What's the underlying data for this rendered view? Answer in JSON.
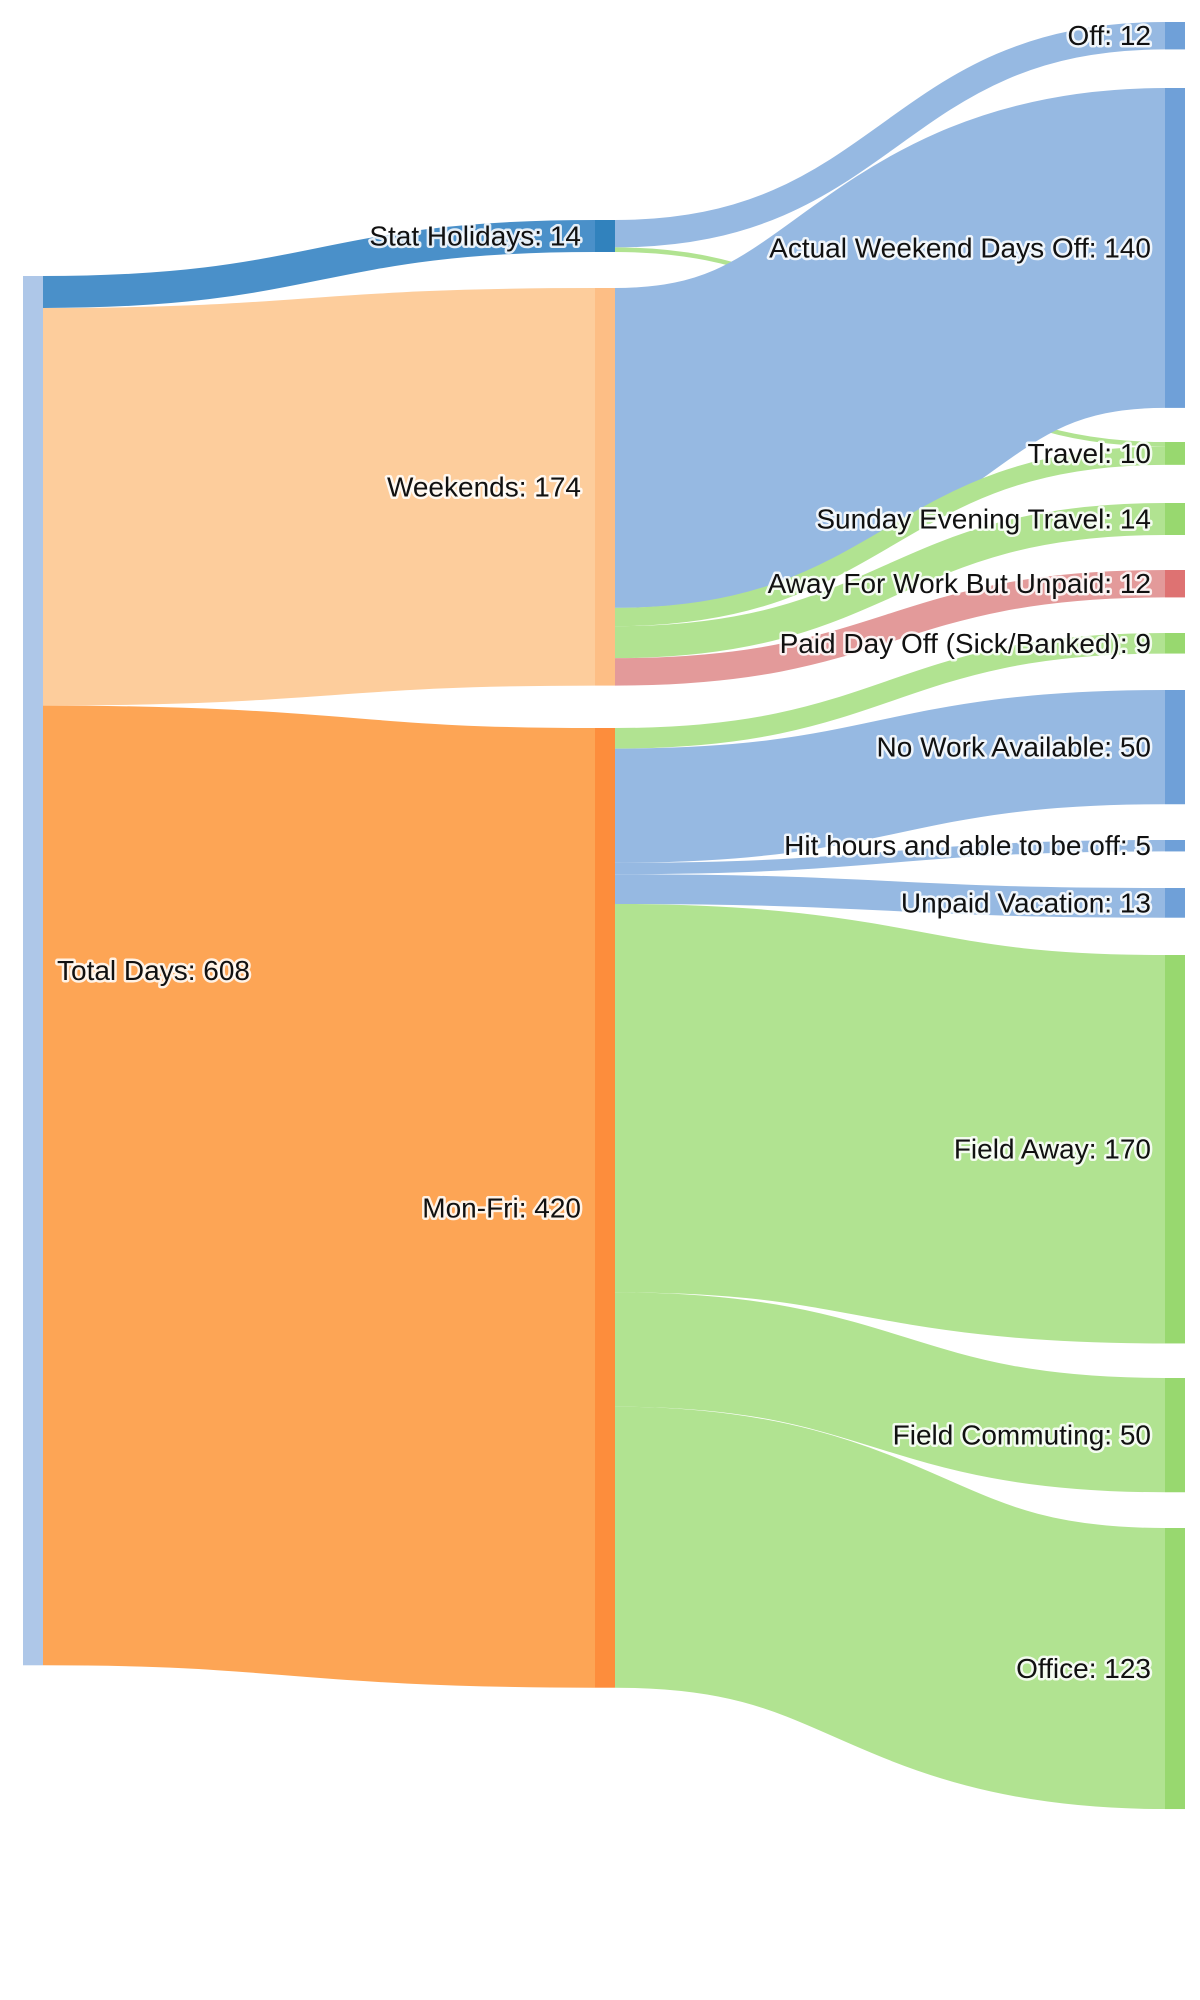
{
  "diagram": {
    "type": "sankey",
    "nodes": [
      {
        "id": "total",
        "label": "Total Days: 608",
        "color": "#aec7e8"
      },
      {
        "id": "stat",
        "label": "Stat Holidays: 14",
        "color": "#3182bd"
      },
      {
        "id": "weekends",
        "label": "Weekends: 174",
        "color": "#fdbe85"
      },
      {
        "id": "monfri",
        "label": "Mon-Fri: 420",
        "color": "#fd8d3c"
      },
      {
        "id": "off",
        "label": "Off: 12",
        "color": "#6fa0d8"
      },
      {
        "id": "awdo",
        "label": "Actual Weekend Days Off: 140",
        "color": "#6fa0d8"
      },
      {
        "id": "travel",
        "label": "Travel: 10",
        "color": "#98d86f"
      },
      {
        "id": "sunday",
        "label": "Sunday Evening Travel: 14",
        "color": "#98d86f"
      },
      {
        "id": "away",
        "label": "Away For Work But Unpaid: 12",
        "color": "#de7272"
      },
      {
        "id": "paid",
        "label": "Paid Day Off (Sick/Banked): 9",
        "color": "#98d86f"
      },
      {
        "id": "nowork",
        "label": "No Work Available: 50",
        "color": "#6fa0d8"
      },
      {
        "id": "hit",
        "label": "Hit hours and able to be off: 5",
        "color": "#6fa0d8"
      },
      {
        "id": "unpaidvac",
        "label": "Unpaid Vacation: 13",
        "color": "#6fa0d8"
      },
      {
        "id": "fieldaway",
        "label": "Field Away: 170",
        "color": "#98d86f"
      },
      {
        "id": "commuting",
        "label": "Field Commuting: 50",
        "color": "#98d86f"
      },
      {
        "id": "office",
        "label": "Office: 123",
        "color": "#98d86f"
      }
    ],
    "links": [
      {
        "source": "total",
        "target": "stat",
        "value": 14,
        "color": "#4a90c9"
      },
      {
        "source": "total",
        "target": "weekends",
        "value": 174,
        "color": "#fdcd9c"
      },
      {
        "source": "total",
        "target": "monfri",
        "value": 420,
        "color": "#fda555"
      },
      {
        "source": "stat",
        "target": "off",
        "value": 12,
        "color": "#96b9e2"
      },
      {
        "source": "stat",
        "target": "travel",
        "value": 2,
        "color": "#b1e391"
      },
      {
        "source": "weekends",
        "target": "awdo",
        "value": 140,
        "color": "#96b9e2"
      },
      {
        "source": "weekends",
        "target": "travel",
        "value": 8,
        "color": "#b1e391"
      },
      {
        "source": "weekends",
        "target": "sunday",
        "value": 14,
        "color": "#b1e391"
      },
      {
        "source": "weekends",
        "target": "away",
        "value": 12,
        "color": "#e39a9a"
      },
      {
        "source": "monfri",
        "target": "paid",
        "value": 9,
        "color": "#b1e391"
      },
      {
        "source": "monfri",
        "target": "nowork",
        "value": 50,
        "color": "#96b9e2"
      },
      {
        "source": "monfri",
        "target": "hit",
        "value": 5,
        "color": "#96b9e2"
      },
      {
        "source": "monfri",
        "target": "unpaidvac",
        "value": 13,
        "color": "#96b9e2"
      },
      {
        "source": "monfri",
        "target": "fieldaway",
        "value": 170,
        "color": "#b1e391"
      },
      {
        "source": "monfri",
        "target": "commuting",
        "value": 50,
        "color": "#b1e391"
      },
      {
        "source": "monfri",
        "target": "office",
        "value": 123,
        "color": "#b1e391"
      }
    ]
  }
}
